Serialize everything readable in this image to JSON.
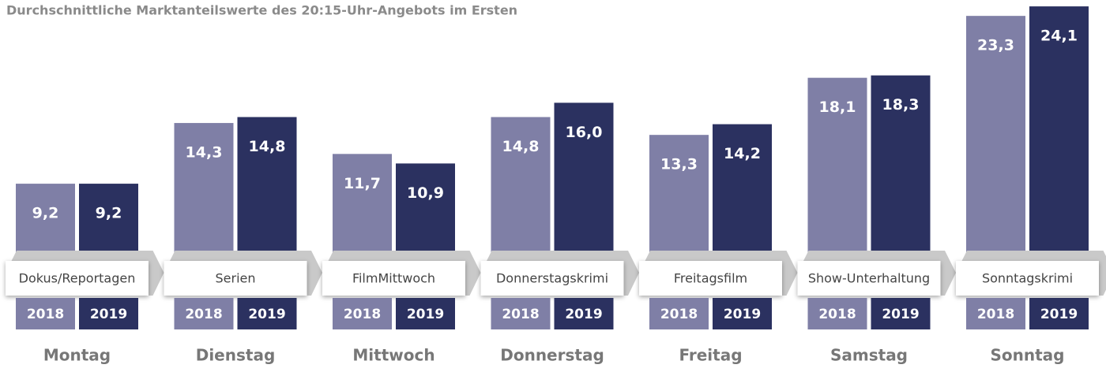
{
  "chart_data": {
    "type": "bar",
    "title": "Durchschnittliche Marktanteilswerte des 20:15-Uhr-Angebots im Ersten",
    "categories": [
      "Dokus/Reportagen",
      "Serien",
      "FilmMittwoch",
      "Donnerstagskrimi",
      "Freitagsfilm",
      "Show-Unterhaltung",
      "Sonntagskrimi"
    ],
    "days": [
      "Montag",
      "Dienstag",
      "Mittwoch",
      "Donnerstag",
      "Freitag",
      "Samstag",
      "Sonntag"
    ],
    "series": [
      {
        "name": "2018",
        "color": "#7f7fa6",
        "values": [
          9.2,
          14.3,
          11.7,
          14.8,
          13.3,
          18.1,
          23.3
        ],
        "value_labels": [
          "9,2",
          "14,3",
          "11,7",
          "14,8",
          "13,3",
          "18,1",
          "23,3"
        ]
      },
      {
        "name": "2019",
        "color": "#2b3160",
        "values": [
          9.2,
          14.8,
          10.9,
          16.0,
          14.2,
          18.3,
          24.1
        ],
        "value_labels": [
          "9,2",
          "14,8",
          "10,9",
          "16,0",
          "14,2",
          "18,3",
          "24,1"
        ]
      }
    ]
  }
}
